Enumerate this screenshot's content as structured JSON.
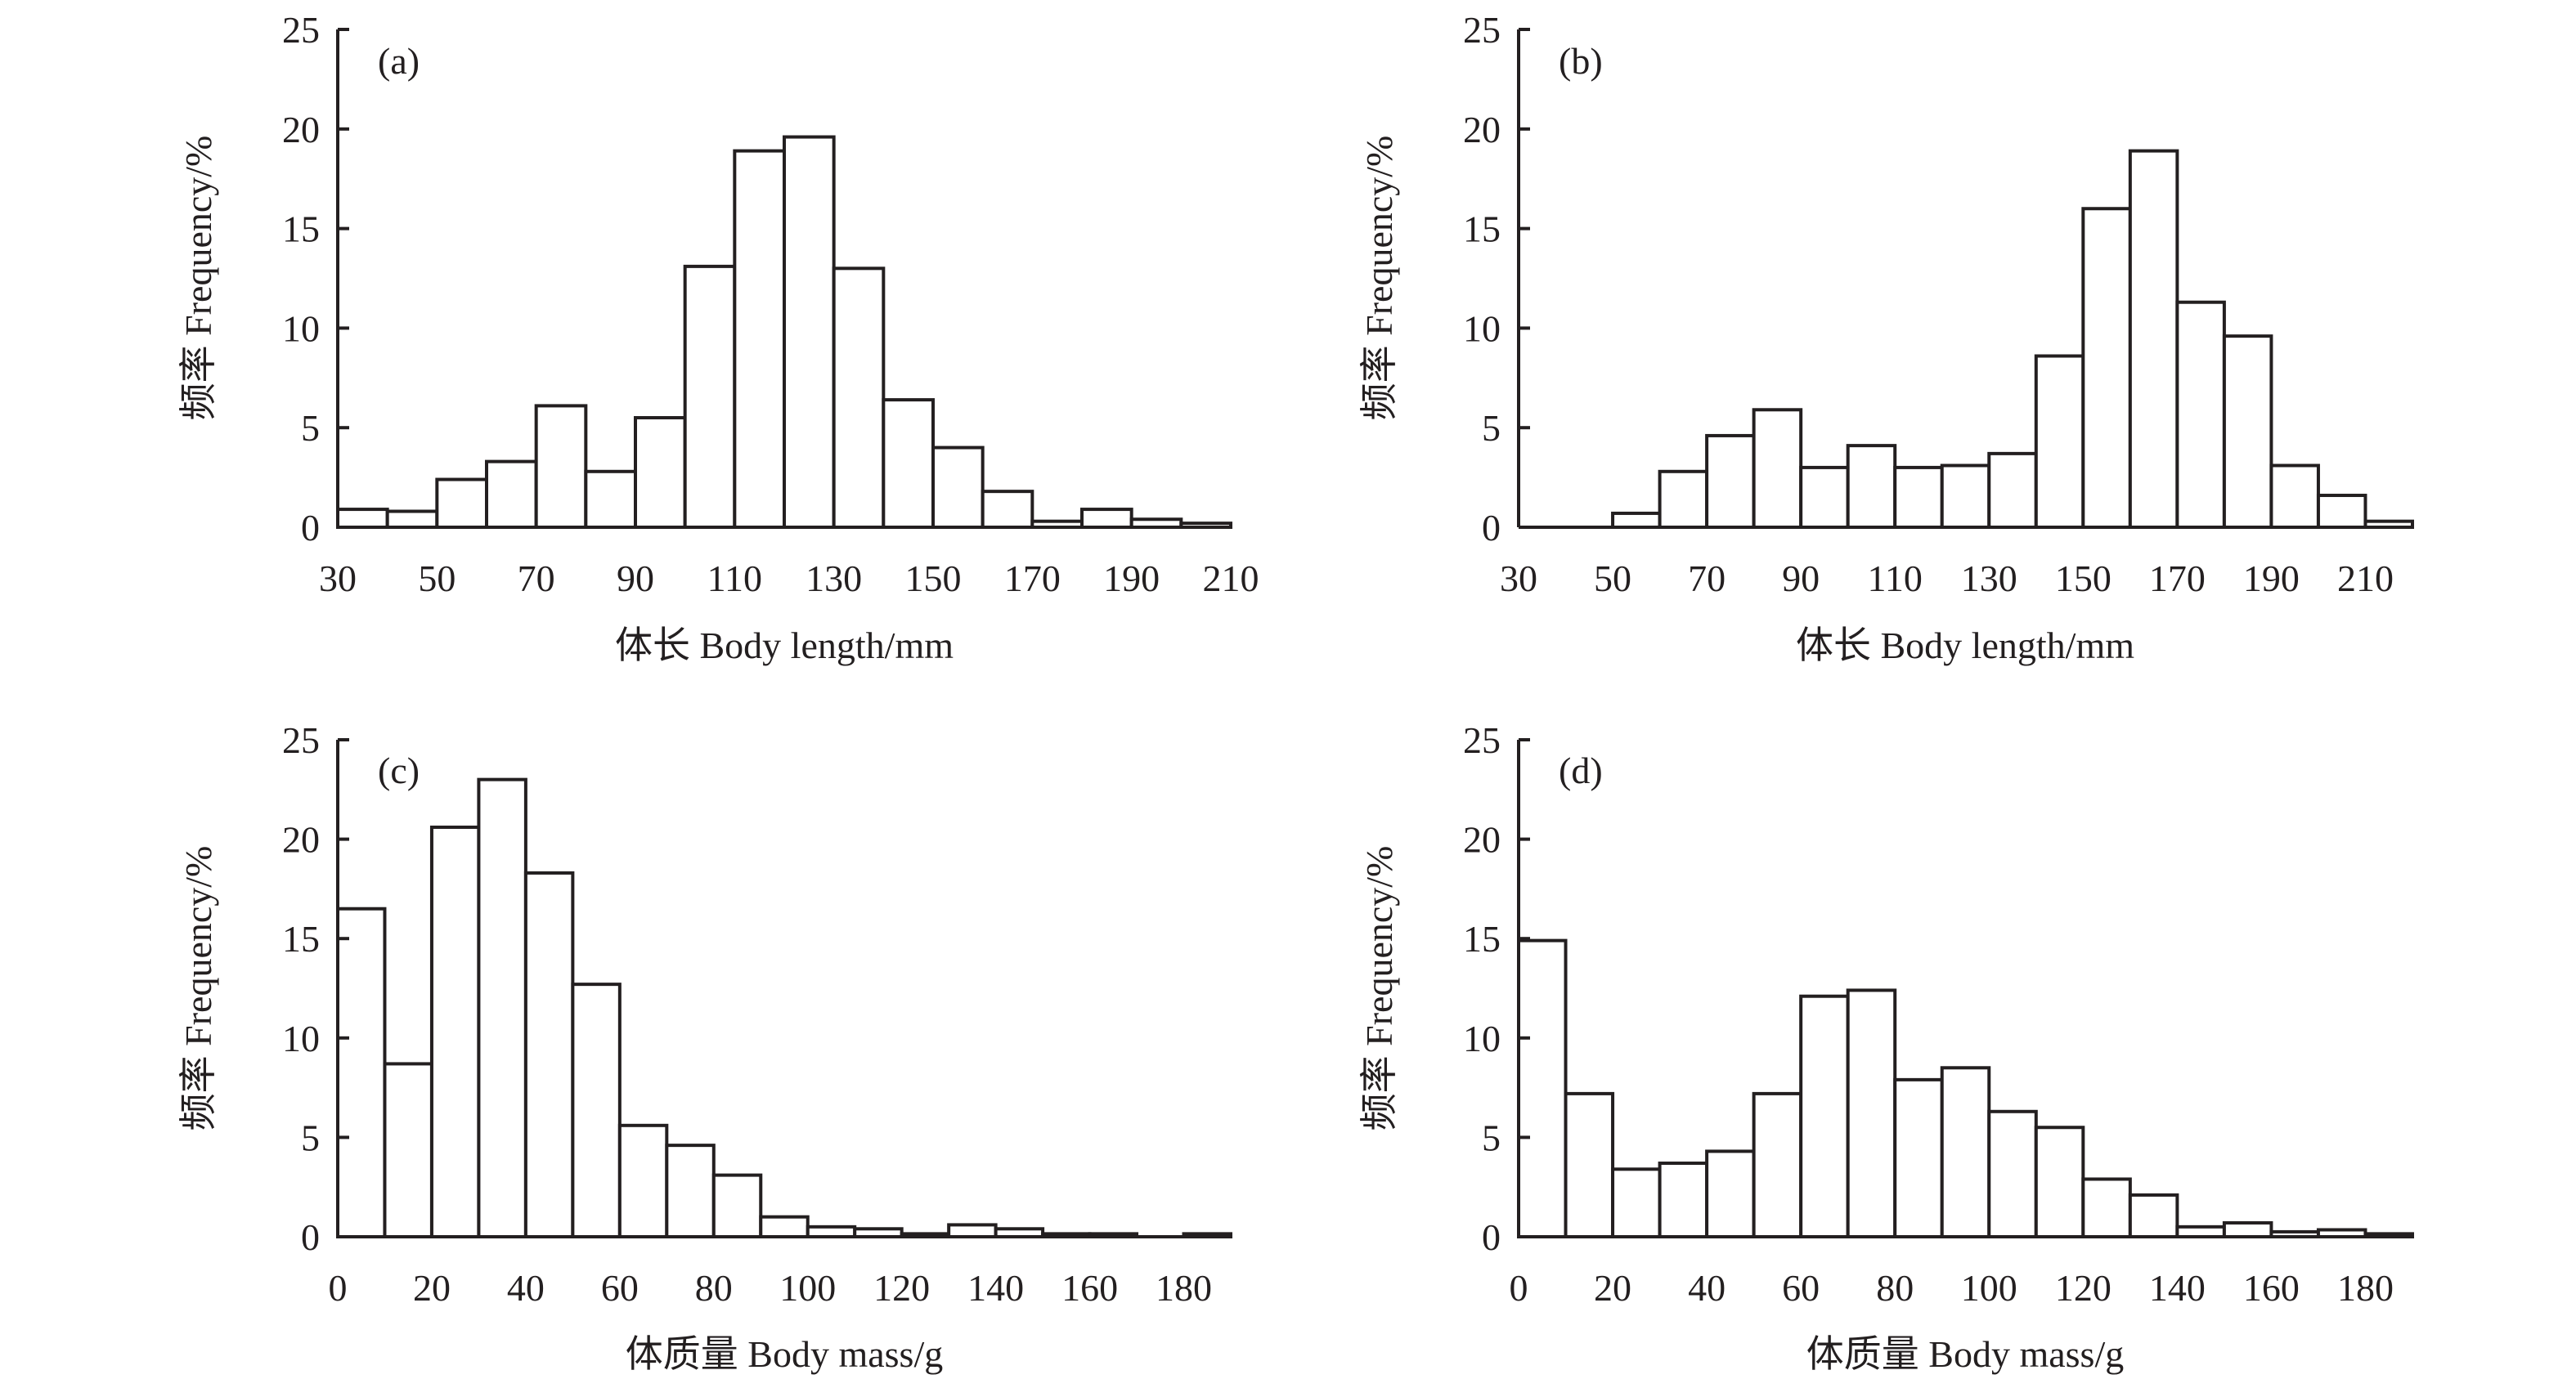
{
  "chart_data": [
    {
      "type": "bar",
      "panel_label": "(a)",
      "xlabel": "体长 Body length/mm",
      "ylabel": "频率 Frequency/%",
      "ylim": [
        0,
        25
      ],
      "yticks": [
        0,
        5,
        10,
        15,
        20,
        25
      ],
      "xlim": [
        30,
        210
      ],
      "xticks": [
        30,
        50,
        70,
        90,
        110,
        130,
        150,
        170,
        190,
        210
      ],
      "bin_width": 10,
      "bins": [
        30,
        40,
        50,
        60,
        70,
        80,
        90,
        100,
        110,
        120,
        130,
        140,
        150,
        160,
        170,
        180,
        190,
        200
      ],
      "values": [
        0.9,
        0.8,
        2.4,
        3.3,
        6.1,
        2.8,
        5.5,
        13.1,
        18.9,
        19.6,
        13.0,
        6.4,
        4.0,
        1.8,
        0.3,
        0.9,
        0.4,
        0.2
      ]
    },
    {
      "type": "bar",
      "panel_label": "(b)",
      "xlabel": "体长 Body length/mm",
      "ylabel": "频率 Frequency/%",
      "ylim": [
        0,
        25
      ],
      "yticks": [
        0,
        5,
        10,
        15,
        20,
        25
      ],
      "xlim": [
        30,
        220
      ],
      "xticks": [
        30,
        50,
        70,
        90,
        110,
        130,
        150,
        170,
        190,
        210
      ],
      "bin_width": 10,
      "bins": [
        30,
        40,
        50,
        60,
        70,
        80,
        90,
        100,
        110,
        120,
        130,
        140,
        150,
        160,
        170,
        180,
        190,
        200,
        210
      ],
      "values": [
        0,
        0,
        0.7,
        2.8,
        4.6,
        5.9,
        3.0,
        4.1,
        3.0,
        3.1,
        3.7,
        8.6,
        16.0,
        18.9,
        11.3,
        9.6,
        3.1,
        1.6,
        0.3
      ]
    },
    {
      "type": "bar",
      "panel_label": "(c)",
      "xlabel": "体质量 Body mass/g",
      "ylabel": "频率 Frequency/%",
      "ylim": [
        0,
        25
      ],
      "yticks": [
        0,
        5,
        10,
        15,
        20,
        25
      ],
      "xlim": [
        0,
        190
      ],
      "xticks": [
        0,
        20,
        40,
        60,
        80,
        100,
        120,
        140,
        160,
        180
      ],
      "bin_width": 10,
      "bins": [
        0,
        10,
        20,
        30,
        40,
        50,
        60,
        70,
        80,
        90,
        100,
        110,
        120,
        130,
        140,
        150,
        160,
        170,
        180
      ],
      "values": [
        16.5,
        8.7,
        20.6,
        23.0,
        18.3,
        12.7,
        5.6,
        4.6,
        3.1,
        1.0,
        0.5,
        0.4,
        0.15,
        0.6,
        0.4,
        0.15,
        0.15,
        0,
        0.15
      ]
    },
    {
      "type": "bar",
      "panel_label": "(d)",
      "xlabel": "体质量 Body mass/g",
      "ylabel": "频率 Frequency/%",
      "ylim": [
        0,
        25
      ],
      "yticks": [
        0,
        5,
        10,
        15,
        20,
        25
      ],
      "xlim": [
        0,
        190
      ],
      "xticks": [
        0,
        20,
        40,
        60,
        80,
        100,
        120,
        140,
        160,
        180
      ],
      "bin_width": 10,
      "bins": [
        0,
        10,
        20,
        30,
        40,
        50,
        60,
        70,
        80,
        90,
        100,
        110,
        120,
        130,
        140,
        150,
        160,
        170,
        180
      ],
      "values": [
        14.9,
        7.2,
        3.4,
        3.7,
        4.3,
        7.2,
        12.1,
        12.4,
        7.9,
        8.5,
        6.3,
        5.5,
        2.9,
        2.1,
        0.5,
        0.7,
        0.25,
        0.35,
        0.15
      ]
    }
  ]
}
